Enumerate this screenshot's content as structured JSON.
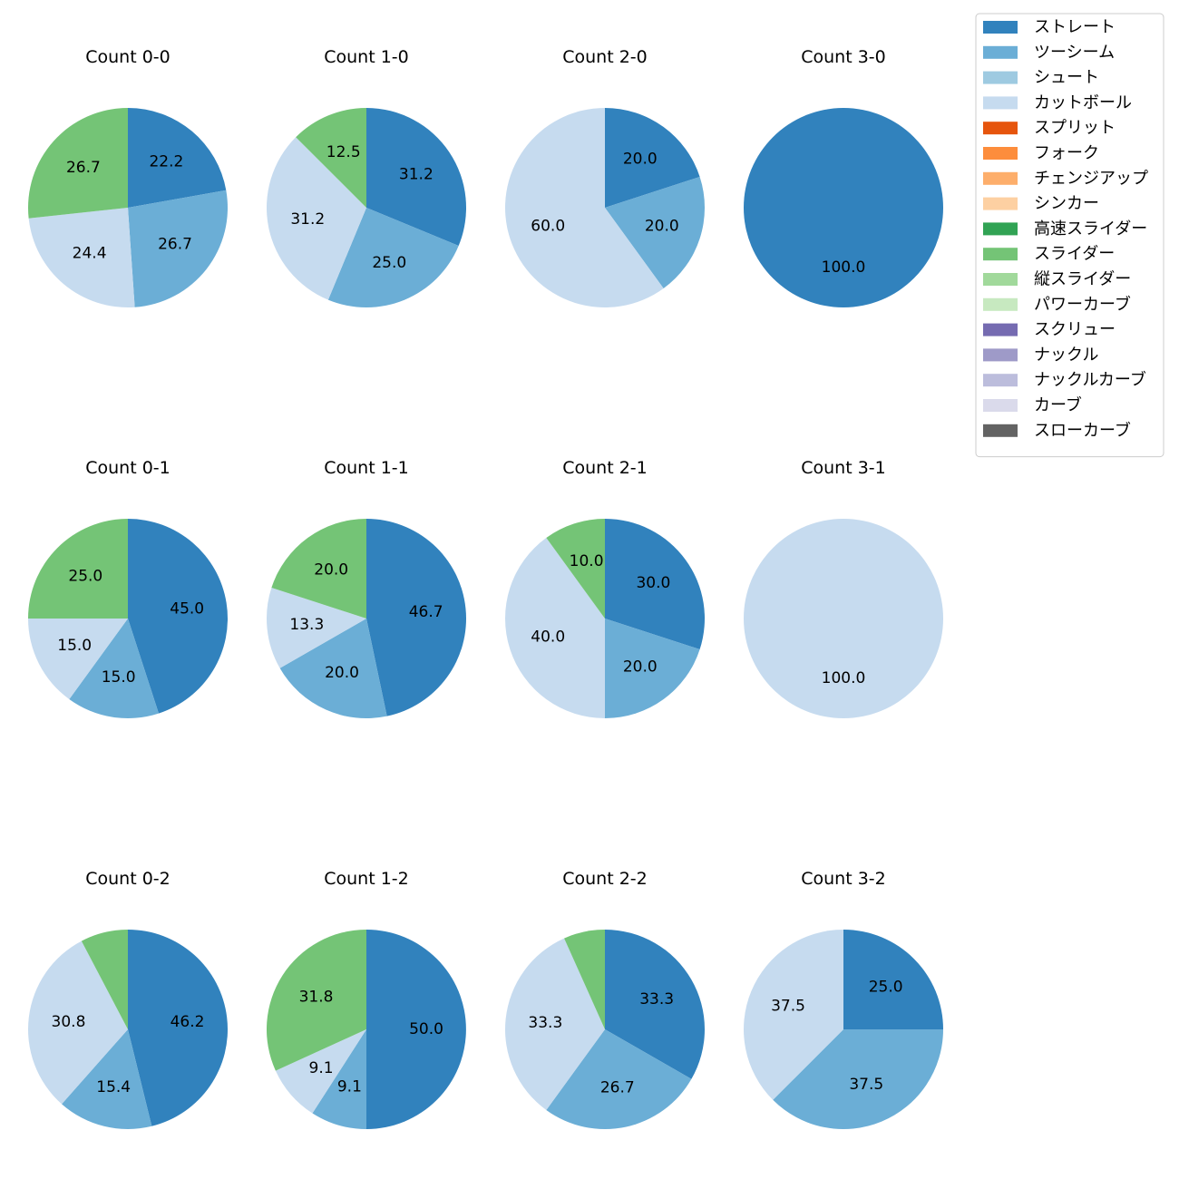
{
  "chart_data": {
    "type": "pie",
    "legend": {
      "placement": "top-right",
      "entries": [
        {
          "name": "ストレート",
          "color": "#3182bd"
        },
        {
          "name": "ツーシーム",
          "color": "#6baed6"
        },
        {
          "name": "シュート",
          "color": "#9ecae1"
        },
        {
          "name": "カットボール",
          "color": "#c6dbef"
        },
        {
          "name": "スプリット",
          "color": "#e6550d"
        },
        {
          "name": "フォーク",
          "color": "#fd8d3c"
        },
        {
          "name": "チェンジアップ",
          "color": "#fdae6b"
        },
        {
          "name": "シンカー",
          "color": "#fdd0a2"
        },
        {
          "name": "高速スライダー",
          "color": "#31a354"
        },
        {
          "name": "スライダー",
          "color": "#74c476"
        },
        {
          "name": "縦スライダー",
          "color": "#a1d99b"
        },
        {
          "name": "パワーカーブ",
          "color": "#c7e9c0"
        },
        {
          "name": "スクリュー",
          "color": "#756bb1"
        },
        {
          "name": "ナックル",
          "color": "#9e9ac8"
        },
        {
          "name": "ナックルカーブ",
          "color": "#bcbddc"
        },
        {
          "name": "カーブ",
          "color": "#dadaeb"
        },
        {
          "name": "スローカーブ",
          "color": "#636363"
        }
      ]
    },
    "pies": [
      {
        "title": "Count 0-0",
        "slices": [
          {
            "name": "ストレート",
            "value": 22.2,
            "label": "22.2"
          },
          {
            "name": "ツーシーム",
            "value": 26.7,
            "label": "26.7"
          },
          {
            "name": "カットボール",
            "value": 24.4,
            "label": "24.4"
          },
          {
            "name": "スライダー",
            "value": 26.7,
            "label": "26.7"
          }
        ]
      },
      {
        "title": "Count 1-0",
        "slices": [
          {
            "name": "ストレート",
            "value": 31.2,
            "label": "31.2"
          },
          {
            "name": "ツーシーム",
            "value": 25.0,
            "label": "25.0"
          },
          {
            "name": "カットボール",
            "value": 31.2,
            "label": "31.2"
          },
          {
            "name": "スライダー",
            "value": 12.5,
            "label": "12.5"
          }
        ]
      },
      {
        "title": "Count 2-0",
        "slices": [
          {
            "name": "ストレート",
            "value": 20.0,
            "label": "20.0"
          },
          {
            "name": "ツーシーム",
            "value": 20.0,
            "label": "20.0"
          },
          {
            "name": "カットボール",
            "value": 60.0,
            "label": "60.0"
          }
        ]
      },
      {
        "title": "Count 3-0",
        "slices": [
          {
            "name": "ストレート",
            "value": 100.0,
            "label": "100.0"
          }
        ]
      },
      {
        "title": "Count 0-1",
        "slices": [
          {
            "name": "ストレート",
            "value": 45.0,
            "label": "45.0"
          },
          {
            "name": "ツーシーム",
            "value": 15.0,
            "label": "15.0"
          },
          {
            "name": "カットボール",
            "value": 15.0,
            "label": "15.0"
          },
          {
            "name": "スライダー",
            "value": 25.0,
            "label": "25.0"
          }
        ]
      },
      {
        "title": "Count 1-1",
        "slices": [
          {
            "name": "ストレート",
            "value": 46.7,
            "label": "46.7"
          },
          {
            "name": "ツーシーム",
            "value": 20.0,
            "label": "20.0"
          },
          {
            "name": "カットボール",
            "value": 13.3,
            "label": "13.3"
          },
          {
            "name": "スライダー",
            "value": 20.0,
            "label": "20.0"
          }
        ]
      },
      {
        "title": "Count 2-1",
        "slices": [
          {
            "name": "ストレート",
            "value": 30.0,
            "label": "30.0"
          },
          {
            "name": "ツーシーム",
            "value": 20.0,
            "label": "20.0"
          },
          {
            "name": "カットボール",
            "value": 40.0,
            "label": "40.0"
          },
          {
            "name": "スライダー",
            "value": 10.0,
            "label": "10.0"
          }
        ]
      },
      {
        "title": "Count 3-1",
        "slices": [
          {
            "name": "カットボール",
            "value": 100.0,
            "label": "100.0"
          }
        ]
      },
      {
        "title": "Count 0-2",
        "slices": [
          {
            "name": "ストレート",
            "value": 46.2,
            "label": "46.2"
          },
          {
            "name": "ツーシーム",
            "value": 15.4,
            "label": "15.4"
          },
          {
            "name": "カットボール",
            "value": 30.8,
            "label": "30.8"
          },
          {
            "name": "スライダー",
            "value": 7.7,
            "label": ""
          }
        ]
      },
      {
        "title": "Count 1-2",
        "slices": [
          {
            "name": "ストレート",
            "value": 50.0,
            "label": "50.0"
          },
          {
            "name": "ツーシーム",
            "value": 9.1,
            "label": "9.1"
          },
          {
            "name": "カットボール",
            "value": 9.1,
            "label": "9.1"
          },
          {
            "name": "スライダー",
            "value": 31.8,
            "label": "31.8"
          }
        ]
      },
      {
        "title": "Count 2-2",
        "slices": [
          {
            "name": "ストレート",
            "value": 33.3,
            "label": "33.3"
          },
          {
            "name": "ツーシーム",
            "value": 26.7,
            "label": "26.7"
          },
          {
            "name": "カットボール",
            "value": 33.3,
            "label": "33.3"
          },
          {
            "name": "スライダー",
            "value": 6.7,
            "label": ""
          }
        ]
      },
      {
        "title": "Count 3-2",
        "slices": [
          {
            "name": "ストレート",
            "value": 25.0,
            "label": "25.0"
          },
          {
            "name": "ツーシーム",
            "value": 37.5,
            "label": "37.5"
          },
          {
            "name": "カットボール",
            "value": 37.5,
            "label": "37.5"
          }
        ]
      }
    ]
  }
}
